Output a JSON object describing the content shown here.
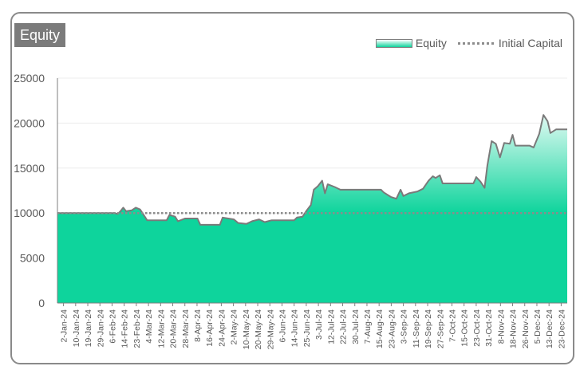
{
  "chart_data": {
    "type": "area",
    "title": "Equity",
    "series": [
      {
        "name": "Equity"
      },
      {
        "name": "Initial Capital"
      }
    ],
    "ylim": [
      0,
      25000
    ],
    "yticks": [
      0,
      5000,
      10000,
      15000,
      20000,
      25000
    ],
    "tick_labels": [
      "2-Jan-24",
      "10-Jan-24",
      "19-Jan-24",
      "29-Jan-24",
      "6-Feb-24",
      "14-Feb-24",
      "23-Feb-24",
      "4-Mar-24",
      "12-Mar-24",
      "20-Mar-24",
      "28-Mar-24",
      "8-Apr-24",
      "16-Apr-24",
      "24-Apr-24",
      "2-May-24",
      "10-May-24",
      "20-May-24",
      "29-May-24",
      "6-Jun-24",
      "14-Jun-24",
      "25-Jun-24",
      "3-Jul-24",
      "12-Jul-24",
      "22-Jul-24",
      "30-Jul-24",
      "7-Aug-24",
      "15-Aug-24",
      "23-Aug-24",
      "3-Sep-24",
      "11-Sep-24",
      "19-Sep-24",
      "27-Sep-24",
      "7-Oct-24",
      "15-Oct-24",
      "23-Oct-24",
      "31-Oct-24",
      "8-Nov-24",
      "18-Nov-24",
      "26-Nov-24",
      "5-Dec-24",
      "13-Dec-24",
      "23-Dec-24"
    ],
    "initial_capital": 10000,
    "equity": [
      [
        "2-Jan-24",
        10000
      ],
      [
        "12-Feb-24",
        10000
      ],
      [
        "14-Feb-24",
        9900
      ],
      [
        "16-Feb-24",
        10200
      ],
      [
        "18-Feb-24",
        10600
      ],
      [
        "20-Feb-24",
        10200
      ],
      [
        "24-Feb-24",
        10300
      ],
      [
        "27-Feb-24",
        10600
      ],
      [
        "1-Mar-24",
        10400
      ],
      [
        "4-Mar-24",
        9700
      ],
      [
        "6-Mar-24",
        9200
      ],
      [
        "20-Mar-24",
        9200
      ],
      [
        "22-Mar-24",
        9800
      ],
      [
        "26-Mar-24",
        9600
      ],
      [
        "28-Mar-24",
        9100
      ],
      [
        "2-Apr-24",
        9400
      ],
      [
        "11-Apr-24",
        9400
      ],
      [
        "13-Apr-24",
        8700
      ],
      [
        "27-Apr-24",
        8700
      ],
      [
        "29-Apr-24",
        9500
      ],
      [
        "7-May-24",
        9300
      ],
      [
        "10-May-24",
        8900
      ],
      [
        "16-May-24",
        8800
      ],
      [
        "20-May-24",
        9100
      ],
      [
        "25-May-24",
        9300
      ],
      [
        "29-May-24",
        9000
      ],
      [
        "3-Jun-24",
        9200
      ],
      [
        "19-Jun-24",
        9200
      ],
      [
        "21-Jun-24",
        9500
      ],
      [
        "25-Jun-24",
        9600
      ],
      [
        "28-Jun-24",
        10300
      ],
      [
        "1-Jul-24",
        10900
      ],
      [
        "3-Jul-24",
        12600
      ],
      [
        "6-Jul-24",
        13000
      ],
      [
        "9-Jul-24",
        13600
      ],
      [
        "11-Jul-24",
        12200
      ],
      [
        "13-Jul-24",
        13200
      ],
      [
        "18-Jul-24",
        12900
      ],
      [
        "22-Jul-24",
        12600
      ],
      [
        "20-Aug-24",
        12600
      ],
      [
        "22-Aug-24",
        12300
      ],
      [
        "27-Aug-24",
        11800
      ],
      [
        "31-Aug-24",
        11600
      ],
      [
        "3-Sep-24",
        12600
      ],
      [
        "5-Sep-24",
        11900
      ],
      [
        "9-Sep-24",
        12200
      ],
      [
        "15-Sep-24",
        12400
      ],
      [
        "19-Sep-24",
        12700
      ],
      [
        "23-Sep-24",
        13600
      ],
      [
        "26-Sep-24",
        14100
      ],
      [
        "28-Sep-24",
        13900
      ],
      [
        "1-Oct-24",
        14200
      ],
      [
        "3-Oct-24",
        13300
      ],
      [
        "25-Oct-24",
        13300
      ],
      [
        "27-Oct-24",
        14000
      ],
      [
        "30-Oct-24",
        13500
      ],
      [
        "2-Nov-24",
        12800
      ],
      [
        "4-Nov-24",
        15300
      ],
      [
        "7-Nov-24",
        18000
      ],
      [
        "10-Nov-24",
        17700
      ],
      [
        "13-Nov-24",
        16200
      ],
      [
        "16-Nov-24",
        17800
      ],
      [
        "20-Nov-24",
        17700
      ],
      [
        "22-Nov-24",
        18700
      ],
      [
        "24-Nov-24",
        17500
      ],
      [
        "4-Dec-24",
        17500
      ],
      [
        "7-Dec-24",
        17300
      ],
      [
        "11-Dec-24",
        18800
      ],
      [
        "14-Dec-24",
        20900
      ],
      [
        "17-Dec-24",
        20200
      ],
      [
        "19-Dec-24",
        18900
      ],
      [
        "23-Dec-24",
        19300
      ],
      [
        "31-Dec-24",
        19300
      ]
    ]
  }
}
